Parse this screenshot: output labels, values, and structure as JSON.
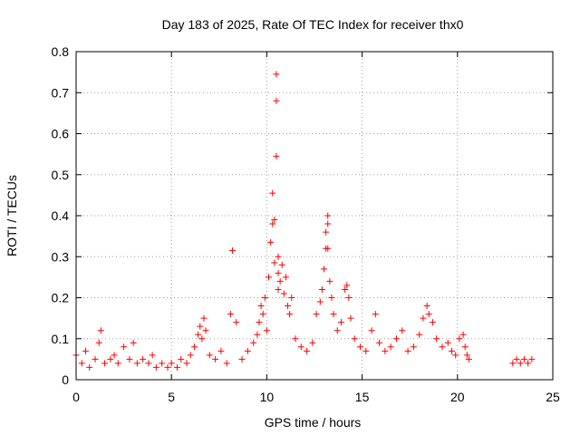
{
  "chart_data": {
    "type": "scatter",
    "title": "Day 183 of 2025, Rate Of TEC Index for receiver thx0",
    "xlabel": "GPS time / hours",
    "ylabel": "ROTI / TECUs",
    "xlim": [
      0,
      25
    ],
    "ylim": [
      0,
      0.8
    ],
    "xticks": [
      "0",
      "5",
      "10",
      "15",
      "20",
      "25"
    ],
    "yticks": [
      "0",
      "0.1",
      "0.2",
      "0.3",
      "0.4",
      "0.5",
      "0.6",
      "0.7",
      "0.8"
    ],
    "grid": true,
    "marker": "+",
    "color": "#ff0000",
    "series": [
      {
        "x": [
          0.0,
          0.3,
          0.5,
          0.7,
          1.0,
          1.2,
          1.3,
          1.5,
          1.8,
          2.0,
          2.2,
          2.5,
          2.8,
          3.0,
          3.2,
          3.5,
          3.8,
          4.0,
          4.2,
          4.5,
          4.8,
          5.0,
          5.3,
          5.5,
          5.8,
          6.0,
          6.2,
          6.4,
          6.5,
          6.6,
          6.7,
          6.8,
          7.0,
          7.3,
          7.6,
          7.9,
          8.1,
          8.2,
          8.4,
          8.7,
          9.0,
          9.3,
          9.5,
          9.6,
          9.7,
          9.8,
          9.9,
          10.0,
          10.1,
          10.2,
          10.3,
          10.3,
          10.4,
          10.4,
          10.5,
          10.5,
          10.5,
          10.6,
          10.6,
          10.6,
          10.7,
          10.8,
          10.9,
          11.0,
          11.1,
          11.2,
          11.3,
          11.5,
          11.8,
          12.1,
          12.4,
          12.6,
          12.8,
          12.9,
          13.0,
          13.1,
          13.1,
          13.2,
          13.2,
          13.2,
          13.3,
          13.4,
          13.5,
          13.7,
          13.9,
          14.1,
          14.2,
          14.3,
          14.4,
          14.6,
          14.9,
          15.2,
          15.5,
          15.7,
          15.9,
          16.2,
          16.5,
          16.8,
          17.1,
          17.4,
          17.7,
          18.0,
          18.2,
          18.4,
          18.5,
          18.7,
          18.9,
          19.2,
          19.5,
          19.7,
          19.9,
          20.1,
          20.3,
          20.4,
          20.5,
          20.6,
          22.9,
          23.1,
          23.3,
          23.5,
          23.7,
          23.9
        ],
        "y": [
          0.06,
          0.04,
          0.07,
          0.03,
          0.05,
          0.09,
          0.12,
          0.04,
          0.05,
          0.06,
          0.04,
          0.08,
          0.05,
          0.09,
          0.04,
          0.05,
          0.04,
          0.06,
          0.03,
          0.04,
          0.03,
          0.04,
          0.03,
          0.05,
          0.04,
          0.06,
          0.08,
          0.11,
          0.13,
          0.1,
          0.15,
          0.12,
          0.06,
          0.05,
          0.07,
          0.04,
          0.16,
          0.315,
          0.14,
          0.05,
          0.07,
          0.09,
          0.11,
          0.14,
          0.18,
          0.16,
          0.2,
          0.12,
          0.25,
          0.335,
          0.38,
          0.455,
          0.285,
          0.39,
          0.545,
          0.68,
          0.745,
          0.3,
          0.26,
          0.22,
          0.24,
          0.28,
          0.21,
          0.25,
          0.18,
          0.16,
          0.2,
          0.1,
          0.08,
          0.07,
          0.09,
          0.16,
          0.19,
          0.22,
          0.27,
          0.32,
          0.36,
          0.38,
          0.4,
          0.32,
          0.24,
          0.2,
          0.16,
          0.12,
          0.14,
          0.22,
          0.23,
          0.2,
          0.15,
          0.1,
          0.08,
          0.07,
          0.12,
          0.16,
          0.09,
          0.07,
          0.08,
          0.1,
          0.12,
          0.07,
          0.08,
          0.11,
          0.15,
          0.18,
          0.16,
          0.14,
          0.1,
          0.08,
          0.09,
          0.07,
          0.06,
          0.1,
          0.11,
          0.08,
          0.06,
          0.05,
          0.04,
          0.05,
          0.04,
          0.05,
          0.04,
          0.05
        ]
      }
    ]
  }
}
